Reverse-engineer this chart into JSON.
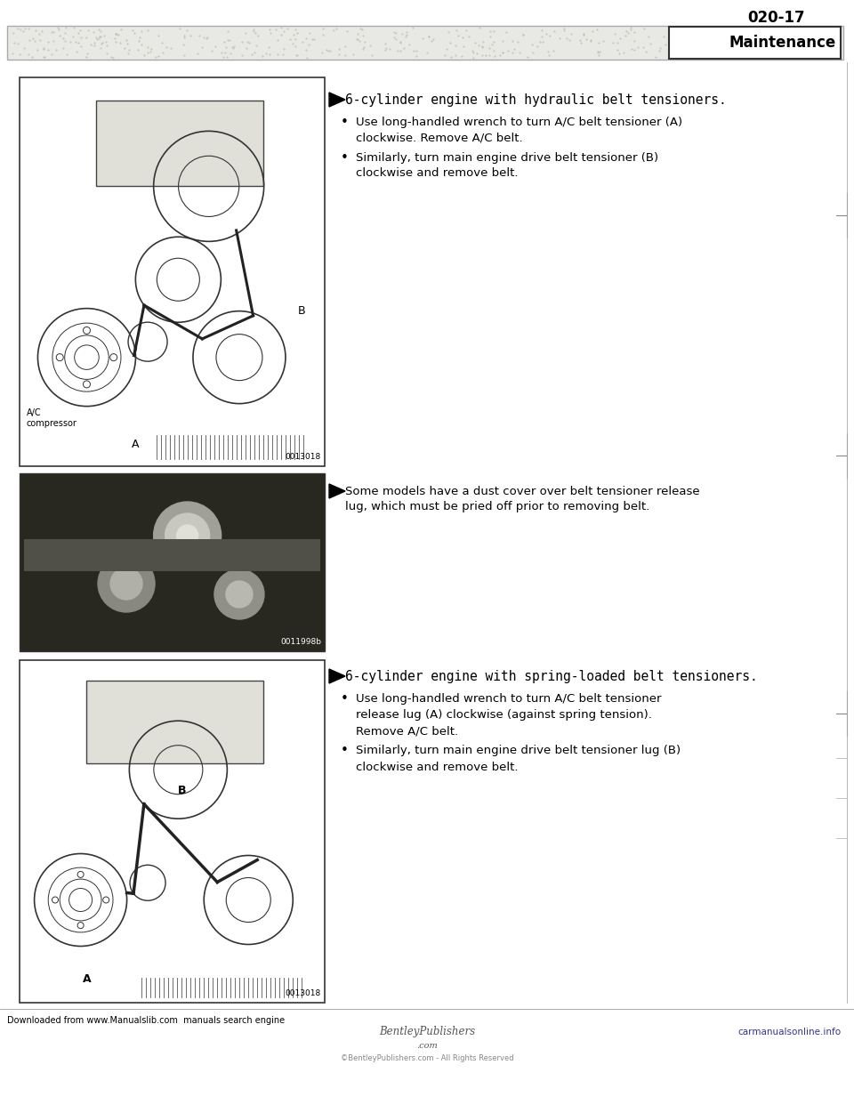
{
  "page_number": "020-17",
  "section_title": "Maintenance",
  "block1_heading": "6-cylinder engine with hydraulic belt tensioners.",
  "block1_bullet1_line1": "Use long-handled wrench to turn A/C belt tensioner (A)",
  "block1_bullet1_line2": "clockwise. Remove A/C belt.",
  "block1_bullet2_line1": "Similarly, turn main engine drive belt tensioner (B)",
  "block1_bullet2_line2": "clockwise and remove belt.",
  "block2_heading_line1": "Some models have a dust cover over belt tensioner release",
  "block2_heading_line2": "lug, which must be pried off prior to removing belt.",
  "block3_heading": "6-cylinder engine with spring-loaded belt tensioners.",
  "block3_bullet1_line1": "Use long-handled wrench to turn A/C belt tensioner",
  "block3_bullet1_line2": "release lug (A) clockwise (against spring tension).",
  "block3_bullet1_line3": "Remove A/C belt.",
  "block3_bullet2_line1": "Similarly, turn main engine drive belt tensioner lug (B)",
  "block3_bullet2_line2": "clockwise and remove belt.",
  "footer_left": "Downloaded from www.Manualslib.com  manuals search engine",
  "footer_center_top": "BentleyPublishers",
  "footer_center_bot": ".com",
  "footer_right": "carmanualsonline.info",
  "footer_copy": "©BentleyPublishers.com - All Rights Reserved",
  "img1_label_ac": "A/C\ncompressor",
  "img1_label_a": "A",
  "img1_label_b": "B",
  "img1_code": "0013018",
  "img2_code": "0011998b",
  "img3_label_a": "A",
  "img3_label_b": "B",
  "img3_code": "0013018",
  "header_text_color": "#888888",
  "header_bar_color": "#cccccc",
  "maintenance_box_bg": "#ffffff",
  "maintenance_text_color": "#000000"
}
